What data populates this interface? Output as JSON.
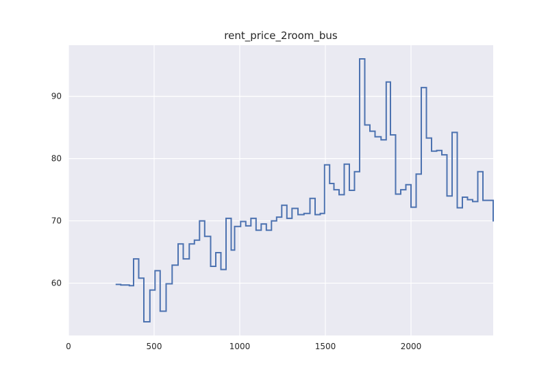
{
  "chart_data": {
    "type": "line",
    "drawstyle": "steps-post",
    "title": "rent_price_2room_bus",
    "xlabel": "",
    "ylabel": "",
    "xlim": [
      0,
      2480
    ],
    "ylim": [
      51.6,
      98.2
    ],
    "xticks": [
      0,
      500,
      1000,
      1500,
      2000
    ],
    "yticks": [
      60,
      70,
      80,
      90
    ],
    "grid": true,
    "background": "#eaeaf2",
    "grid_color": "#ffffff",
    "line_color": "#4c72b0",
    "series": [
      {
        "x": [
          275,
          305,
          355,
          380,
          410,
          440,
          475,
          505,
          535,
          570,
          605,
          640,
          670,
          705,
          735,
          765,
          795,
          830,
          860,
          890,
          920,
          950,
          970,
          1005,
          1035,
          1065,
          1095,
          1125,
          1155,
          1185,
          1215,
          1245,
          1275,
          1305,
          1340,
          1375,
          1410,
          1440,
          1470,
          1495,
          1525,
          1550,
          1580,
          1610,
          1640,
          1670,
          1700,
          1730,
          1760,
          1790,
          1825,
          1855,
          1880,
          1910,
          1940,
          1970,
          2000,
          2030,
          2060,
          2090,
          2120,
          2150,
          2180,
          2210,
          2240,
          2270,
          2300,
          2330,
          2360,
          2390,
          2420,
          2480
        ],
        "y": [
          59.8,
          59.7,
          59.6,
          63.9,
          60.8,
          53.8,
          58.9,
          62.0,
          55.5,
          59.9,
          62.9,
          66.3,
          63.9,
          66.3,
          66.9,
          70.0,
          67.5,
          62.7,
          64.9,
          62.2,
          70.4,
          65.3,
          69.1,
          69.9,
          69.2,
          70.4,
          68.5,
          69.5,
          68.5,
          70.0,
          70.6,
          72.5,
          70.4,
          72.0,
          71.0,
          71.2,
          73.6,
          71.0,
          71.2,
          79.0,
          76.0,
          75.0,
          74.2,
          79.1,
          74.9,
          77.9,
          96.0,
          85.4,
          84.4,
          83.5,
          83.0,
          92.3,
          83.8,
          74.3,
          75.0,
          75.8,
          72.2,
          77.5,
          91.4,
          83.3,
          81.2,
          81.3,
          80.6,
          74.0,
          84.2,
          72.1,
          73.8,
          73.4,
          73.1,
          77.9,
          73.3,
          69.9
        ]
      }
    ]
  }
}
